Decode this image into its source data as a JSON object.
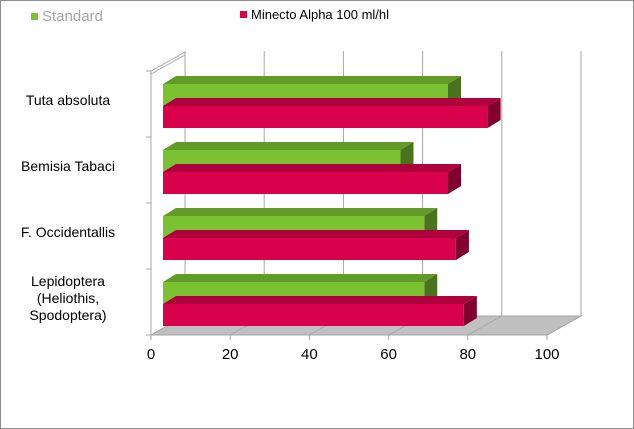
{
  "chart_data": {
    "type": "bar",
    "orientation": "horizontal",
    "style": "3d-clustered",
    "categories": [
      "Tuta absoluta",
      "Bemisia Tabaci",
      "F. Occidentallis",
      "Lepidoptera (Heliothis, Spodoptera)"
    ],
    "category_lines": [
      [
        "Tuta absoluta"
      ],
      [
        "Bemisia Tabaci"
      ],
      [
        "F. Occidentallis"
      ],
      [
        "Lepidoptera",
        "(Heliothis,",
        "Spodoptera)"
      ]
    ],
    "series": [
      {
        "name": "Standard",
        "color": "#7ac231",
        "values": [
          75,
          63,
          69,
          69
        ]
      },
      {
        "name": "Minecto Alpha 100 ml/hl",
        "color": "#d9004c",
        "values": [
          85,
          75,
          77,
          79
        ]
      }
    ],
    "xlim": [
      0,
      100
    ],
    "xticks": [
      "0",
      "20",
      "40",
      "60",
      "80",
      "100"
    ],
    "grid": true,
    "legend": "top"
  }
}
